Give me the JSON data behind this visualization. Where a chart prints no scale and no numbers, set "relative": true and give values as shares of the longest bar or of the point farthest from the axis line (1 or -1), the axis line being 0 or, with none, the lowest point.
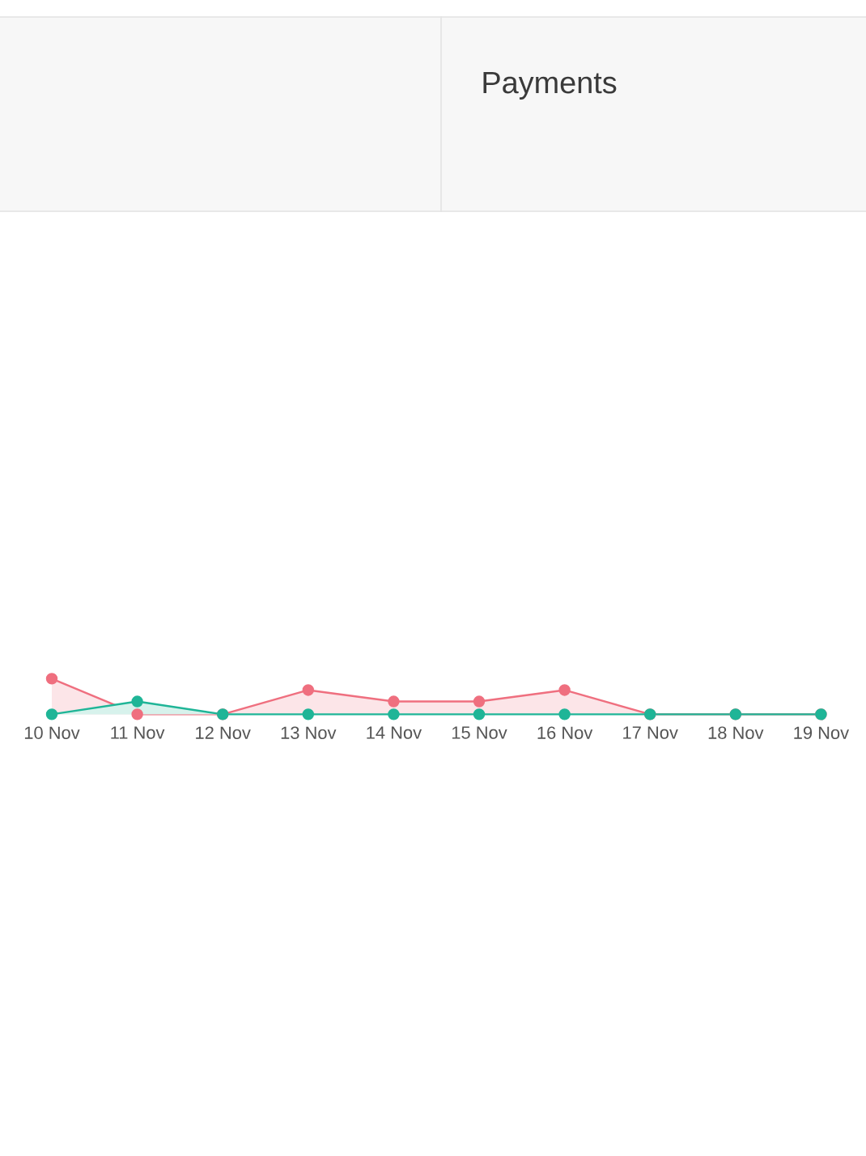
{
  "chart_data": {
    "type": "area",
    "title": "Payments",
    "relative": true,
    "marker": "circle",
    "line_style": "solid",
    "categories": [
      "10 Nov",
      "11 Nov",
      "12 Nov",
      "13 Nov",
      "14 Nov",
      "15 Nov",
      "16 Nov",
      "17 Nov",
      "18 Nov",
      "19 Nov"
    ],
    "series": [
      {
        "color": "#ef6f7f",
        "values": [
          1,
          0,
          0,
          0.68,
          0.36,
          0.36,
          0.68,
          0,
          0,
          0
        ]
      },
      {
        "color": "#1fb597",
        "values": [
          0,
          0.36,
          0,
          0,
          0,
          0,
          0,
          0,
          0,
          0
        ]
      }
    ]
  }
}
